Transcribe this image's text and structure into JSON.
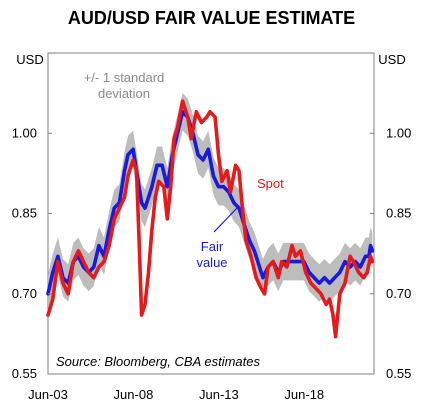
{
  "chart_data": {
    "type": "line",
    "title": "AUD/USD FAIR VALUE ESTIMATE",
    "ylabel_left": "USD",
    "ylabel_right": "USD",
    "ylim": [
      0.55,
      1.15
    ],
    "yticks": [
      "0.55",
      "0.70",
      "0.85",
      "1.00"
    ],
    "xlim": [
      2003.42,
      2022.5
    ],
    "xticks": [
      {
        "label": "Jun-03",
        "x": 2003.42
      },
      {
        "label": "Jun-08",
        "x": 2008.42
      },
      {
        "label": "Jun-13",
        "x": 2013.42
      },
      {
        "label": "Jun-18",
        "x": 2018.42
      }
    ],
    "band_annotation": "+/- 1 standard\ndeviation",
    "source": "Source: Bloomberg, CBA estimates",
    "colors": {
      "spot": "#e41a1c",
      "fair": "#1a1adc",
      "band": "#bdbdbd"
    },
    "band_half_width": 0.035,
    "series": [
      {
        "name": "Spot",
        "color": "#e41a1c",
        "points": [
          [
            2003.42,
            0.66
          ],
          [
            2003.7,
            0.69
          ],
          [
            2004.0,
            0.76
          ],
          [
            2004.3,
            0.72
          ],
          [
            2004.6,
            0.7
          ],
          [
            2004.9,
            0.76
          ],
          [
            2005.2,
            0.78
          ],
          [
            2005.5,
            0.76
          ],
          [
            2005.8,
            0.74
          ],
          [
            2006.1,
            0.73
          ],
          [
            2006.4,
            0.75
          ],
          [
            2006.7,
            0.76
          ],
          [
            2007.0,
            0.79
          ],
          [
            2007.3,
            0.84
          ],
          [
            2007.6,
            0.86
          ],
          [
            2007.9,
            0.88
          ],
          [
            2008.1,
            0.92
          ],
          [
            2008.4,
            0.95
          ],
          [
            2008.6,
            0.93
          ],
          [
            2008.75,
            0.8
          ],
          [
            2008.9,
            0.66
          ],
          [
            2009.1,
            0.68
          ],
          [
            2009.3,
            0.74
          ],
          [
            2009.5,
            0.82
          ],
          [
            2009.7,
            0.88
          ],
          [
            2009.9,
            0.91
          ],
          [
            2010.2,
            0.9
          ],
          [
            2010.4,
            0.84
          ],
          [
            2010.6,
            0.9
          ],
          [
            2010.8,
            0.99
          ],
          [
            2011.0,
            1.01
          ],
          [
            2011.3,
            1.06
          ],
          [
            2011.6,
            1.03
          ],
          [
            2011.8,
            0.99
          ],
          [
            2012.1,
            1.04
          ],
          [
            2012.4,
            1.02
          ],
          [
            2012.7,
            1.03
          ],
          [
            2012.9,
            1.04
          ],
          [
            2013.2,
            1.03
          ],
          [
            2013.4,
            0.96
          ],
          [
            2013.6,
            0.91
          ],
          [
            2013.9,
            0.93
          ],
          [
            2014.1,
            0.89
          ],
          [
            2014.4,
            0.94
          ],
          [
            2014.6,
            0.93
          ],
          [
            2014.8,
            0.86
          ],
          [
            2015.0,
            0.8
          ],
          [
            2015.3,
            0.77
          ],
          [
            2015.6,
            0.73
          ],
          [
            2015.9,
            0.71
          ],
          [
            2016.1,
            0.7
          ],
          [
            2016.3,
            0.75
          ],
          [
            2016.6,
            0.76
          ],
          [
            2016.9,
            0.73
          ],
          [
            2017.1,
            0.76
          ],
          [
            2017.4,
            0.75
          ],
          [
            2017.7,
            0.79
          ],
          [
            2017.9,
            0.77
          ],
          [
            2018.2,
            0.78
          ],
          [
            2018.5,
            0.74
          ],
          [
            2018.8,
            0.72
          ],
          [
            2019.1,
            0.71
          ],
          [
            2019.4,
            0.7
          ],
          [
            2019.7,
            0.68
          ],
          [
            2019.9,
            0.69
          ],
          [
            2020.1,
            0.66
          ],
          [
            2020.25,
            0.62
          ],
          [
            2020.5,
            0.7
          ],
          [
            2020.8,
            0.72
          ],
          [
            2021.1,
            0.77
          ],
          [
            2021.3,
            0.76
          ],
          [
            2021.6,
            0.74
          ],
          [
            2021.9,
            0.73
          ],
          [
            2022.1,
            0.74
          ],
          [
            2022.3,
            0.77
          ],
          [
            2022.4,
            0.76
          ]
        ]
      },
      {
        "name": "Fair value",
        "color": "#1a1adc",
        "points": [
          [
            2003.42,
            0.7
          ],
          [
            2003.7,
            0.74
          ],
          [
            2004.0,
            0.77
          ],
          [
            2004.3,
            0.73
          ],
          [
            2004.6,
            0.72
          ],
          [
            2004.9,
            0.76
          ],
          [
            2005.2,
            0.77
          ],
          [
            2005.5,
            0.75
          ],
          [
            2005.8,
            0.74
          ],
          [
            2006.1,
            0.75
          ],
          [
            2006.4,
            0.79
          ],
          [
            2006.7,
            0.77
          ],
          [
            2007.0,
            0.82
          ],
          [
            2007.3,
            0.86
          ],
          [
            2007.6,
            0.87
          ],
          [
            2007.9,
            0.93
          ],
          [
            2008.1,
            0.96
          ],
          [
            2008.4,
            0.97
          ],
          [
            2008.6,
            0.93
          ],
          [
            2008.9,
            0.87
          ],
          [
            2009.1,
            0.86
          ],
          [
            2009.3,
            0.88
          ],
          [
            2009.5,
            0.9
          ],
          [
            2009.8,
            0.94
          ],
          [
            2010.1,
            0.94
          ],
          [
            2010.4,
            0.9
          ],
          [
            2010.7,
            0.96
          ],
          [
            2011.0,
            1.0
          ],
          [
            2011.3,
            1.04
          ],
          [
            2011.6,
            1.03
          ],
          [
            2011.9,
            1.0
          ],
          [
            2012.2,
            0.96
          ],
          [
            2012.5,
            0.95
          ],
          [
            2012.8,
            0.97
          ],
          [
            2013.1,
            0.92
          ],
          [
            2013.4,
            0.9
          ],
          [
            2013.7,
            0.9
          ],
          [
            2014.0,
            0.89
          ],
          [
            2014.3,
            0.87
          ],
          [
            2014.6,
            0.86
          ],
          [
            2014.9,
            0.83
          ],
          [
            2015.2,
            0.8
          ],
          [
            2015.5,
            0.78
          ],
          [
            2015.8,
            0.75
          ],
          [
            2016.0,
            0.73
          ],
          [
            2016.3,
            0.75
          ],
          [
            2016.6,
            0.76
          ],
          [
            2016.9,
            0.74
          ],
          [
            2017.2,
            0.76
          ],
          [
            2017.5,
            0.76
          ],
          [
            2017.8,
            0.76
          ],
          [
            2018.1,
            0.76
          ],
          [
            2018.4,
            0.76
          ],
          [
            2018.7,
            0.74
          ],
          [
            2019.0,
            0.73
          ],
          [
            2019.3,
            0.72
          ],
          [
            2019.6,
            0.73
          ],
          [
            2019.9,
            0.72
          ],
          [
            2020.2,
            0.73
          ],
          [
            2020.5,
            0.74
          ],
          [
            2020.8,
            0.76
          ],
          [
            2021.1,
            0.75
          ],
          [
            2021.4,
            0.76
          ],
          [
            2021.7,
            0.75
          ],
          [
            2022.0,
            0.77
          ],
          [
            2022.2,
            0.77
          ],
          [
            2022.3,
            0.79
          ],
          [
            2022.4,
            0.78
          ]
        ]
      }
    ],
    "labels": {
      "spot": "Spot",
      "fair": "Fair\nvalue"
    }
  }
}
